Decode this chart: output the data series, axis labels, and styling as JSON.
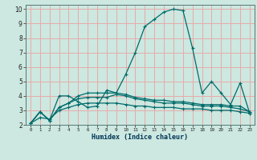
{
  "xlabel": "Humidex (Indice chaleur)",
  "bg_color": "#cce8e0",
  "grid_color": "#e8aaaa",
  "line_color": "#006b6b",
  "xlim": [
    -0.5,
    23.5
  ],
  "ylim": [
    2,
    10.3
  ],
  "xticks": [
    0,
    1,
    2,
    3,
    4,
    5,
    6,
    7,
    8,
    9,
    10,
    11,
    12,
    13,
    14,
    15,
    16,
    17,
    18,
    19,
    20,
    21,
    22,
    23
  ],
  "yticks": [
    2,
    3,
    4,
    5,
    6,
    7,
    8,
    9,
    10
  ],
  "series": [
    [
      2.1,
      2.9,
      2.3,
      4.0,
      4.0,
      3.6,
      3.2,
      3.3,
      4.4,
      4.2,
      5.5,
      7.0,
      8.8,
      9.3,
      9.8,
      10.0,
      9.9,
      7.3,
      4.2,
      5.0,
      4.2,
      3.4,
      4.9,
      2.8
    ],
    [
      2.1,
      2.9,
      2.3,
      3.2,
      3.5,
      4.0,
      4.2,
      4.2,
      4.2,
      4.2,
      4.1,
      3.9,
      3.8,
      3.7,
      3.7,
      3.6,
      3.6,
      3.5,
      3.4,
      3.4,
      3.4,
      3.3,
      3.3,
      2.9
    ],
    [
      2.1,
      2.9,
      2.3,
      3.2,
      3.5,
      3.8,
      3.9,
      3.9,
      3.9,
      4.1,
      4.0,
      3.8,
      3.7,
      3.6,
      3.5,
      3.5,
      3.5,
      3.4,
      3.3,
      3.3,
      3.3,
      3.2,
      3.1,
      2.9
    ],
    [
      2.1,
      2.5,
      2.4,
      3.0,
      3.2,
      3.4,
      3.5,
      3.5,
      3.5,
      3.5,
      3.4,
      3.3,
      3.3,
      3.2,
      3.2,
      3.2,
      3.1,
      3.1,
      3.1,
      3.0,
      3.0,
      3.0,
      2.9,
      2.8
    ]
  ]
}
